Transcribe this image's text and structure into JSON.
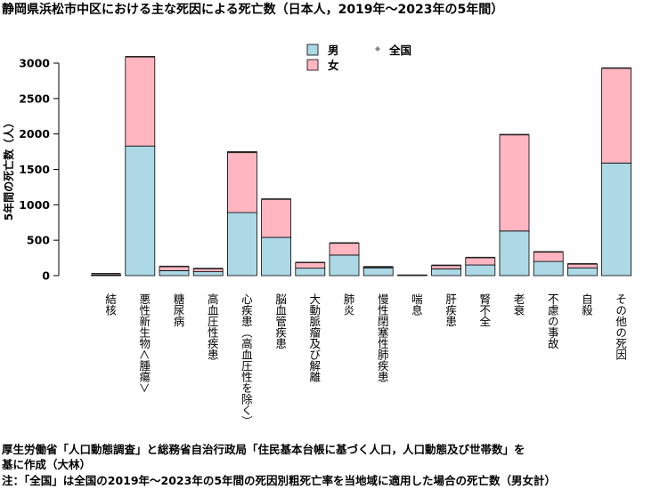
{
  "title": "静岡県浜松市中区における主な死因による死亡数（日本人，2019年～2023年の5年間）",
  "footer": {
    "line1": "厚生労働省「人口動態調査」と総務省自治行政局「住民基本台帳に基づく人口，人口動態及び世帯数」を",
    "line2": "基に作成（大林）",
    "line3": "注：「全国」は全国の2019年～2023年の5年間の死因別粗死亡率を当地域に適用した場合の死亡数（男女計）"
  },
  "chart_data": {
    "type": "bar",
    "stacked": true,
    "ylabel": "5年間の死亡数（人）",
    "ylim": [
      0,
      3000
    ],
    "yticks": [
      0,
      500,
      1000,
      1500,
      2000,
      2500,
      3000
    ],
    "legend_position": "top-right",
    "categories": [
      "結核",
      "悪性新生物＜腫瘍＞",
      "糖尿病",
      "高血圧性疾患",
      "心疾患（高血圧性を除く）",
      "脳血管疾患",
      "大動脈瘤及び解離",
      "肺炎",
      "慢性閉塞性肺疾患",
      "喘息",
      "肝疾患",
      "腎不全",
      "老衰",
      "不慮の事故",
      "自殺",
      "その他の死因"
    ],
    "series": [
      {
        "name": "男",
        "color": "#add8e6",
        "values": [
          4,
          1830,
          70,
          55,
          890,
          540,
          105,
          290,
          110,
          3,
          95,
          150,
          630,
          200,
          110,
          1590
        ]
      },
      {
        "name": "女",
        "color": "#ffb6c1",
        "values": [
          3,
          1260,
          60,
          45,
          860,
          540,
          80,
          170,
          15,
          2,
          50,
          105,
          1360,
          140,
          55,
          1340
        ]
      }
    ],
    "national_legend": "全国",
    "national": [
      28,
      3090,
      130,
      100,
      1740,
      1080,
      185,
      460,
      125,
      5,
      145,
      255,
      1990,
      335,
      165,
      2930
    ]
  }
}
